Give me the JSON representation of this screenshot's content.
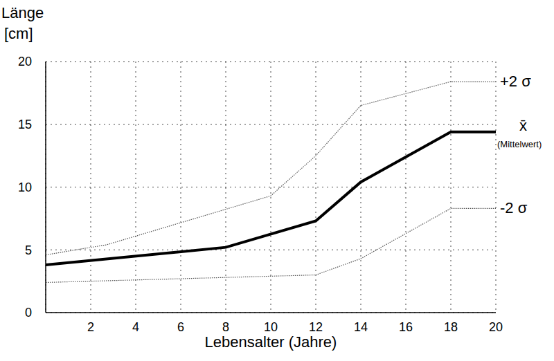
{
  "chart_data": {
    "type": "line",
    "x_label": "Lebensalter (Jahre)",
    "y_label": "Länge [cm]",
    "xlim": [
      0,
      20
    ],
    "xticks": [
      2,
      4,
      6,
      8,
      10,
      12,
      14,
      16,
      18,
      20
    ],
    "ylim": [
      0,
      20
    ],
    "yticks": [
      0,
      5,
      10,
      15,
      20
    ],
    "grid": true,
    "annotations": [
      "(Mittelwert)"
    ],
    "series": [
      {
        "name": "+2 σ",
        "color": "#555555",
        "line_style": "dotted",
        "x": [
          0,
          2.7,
          10,
          12,
          14,
          18,
          20
        ],
        "values": [
          4.6,
          5.4,
          9.3,
          12.5,
          16.5,
          18.4,
          18.4
        ]
      },
      {
        "name": "x̄",
        "color": "#000000",
        "line_style": "solid",
        "x": [
          0,
          8,
          12,
          14,
          18,
          20
        ],
        "values": [
          3.8,
          5.2,
          7.3,
          10.4,
          14.4,
          14.4
        ]
      },
      {
        "name": "-2 σ",
        "color": "#555555",
        "line_style": "dotted",
        "x": [
          0,
          8,
          12,
          14,
          18,
          20
        ],
        "values": [
          2.4,
          2.8,
          3.0,
          4.3,
          8.3,
          8.3
        ]
      }
    ]
  }
}
